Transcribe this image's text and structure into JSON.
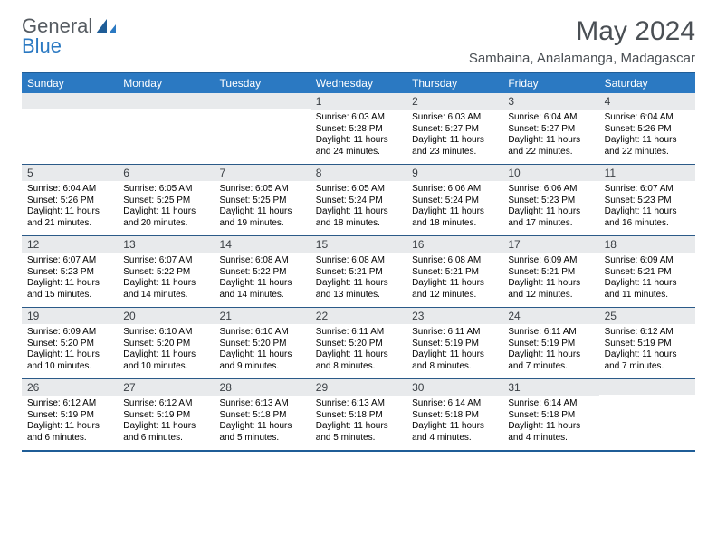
{
  "logo": {
    "text1": "General",
    "text2": "Blue"
  },
  "title": "May 2024",
  "location": "Sambaina, Analamanga, Madagascar",
  "colors": {
    "accent": "#2b79c2",
    "border": "#1f5d97",
    "daynum_bg": "#e8eaec",
    "row_border": "#2b5a88",
    "text_dark": "#4a4f54"
  },
  "typography": {
    "title_fontsize": 30,
    "location_fontsize": 15,
    "header_fontsize": 12,
    "daynum_fontsize": 12,
    "body_fontsize": 10
  },
  "layout": {
    "columns": 7,
    "rows": 5,
    "cell_width": 106.28
  },
  "day_headers": [
    "Sunday",
    "Monday",
    "Tuesday",
    "Wednesday",
    "Thursday",
    "Friday",
    "Saturday"
  ],
  "weeks": [
    [
      {
        "num": "",
        "lines": [
          "",
          "",
          "",
          ""
        ]
      },
      {
        "num": "",
        "lines": [
          "",
          "",
          "",
          ""
        ]
      },
      {
        "num": "",
        "lines": [
          "",
          "",
          "",
          ""
        ]
      },
      {
        "num": "1",
        "lines": [
          "Sunrise: 6:03 AM",
          "Sunset: 5:28 PM",
          "Daylight: 11 hours",
          "and 24 minutes."
        ]
      },
      {
        "num": "2",
        "lines": [
          "Sunrise: 6:03 AM",
          "Sunset: 5:27 PM",
          "Daylight: 11 hours",
          "and 23 minutes."
        ]
      },
      {
        "num": "3",
        "lines": [
          "Sunrise: 6:04 AM",
          "Sunset: 5:27 PM",
          "Daylight: 11 hours",
          "and 22 minutes."
        ]
      },
      {
        "num": "4",
        "lines": [
          "Sunrise: 6:04 AM",
          "Sunset: 5:26 PM",
          "Daylight: 11 hours",
          "and 22 minutes."
        ]
      }
    ],
    [
      {
        "num": "5",
        "lines": [
          "Sunrise: 6:04 AM",
          "Sunset: 5:26 PM",
          "Daylight: 11 hours",
          "and 21 minutes."
        ]
      },
      {
        "num": "6",
        "lines": [
          "Sunrise: 6:05 AM",
          "Sunset: 5:25 PM",
          "Daylight: 11 hours",
          "and 20 minutes."
        ]
      },
      {
        "num": "7",
        "lines": [
          "Sunrise: 6:05 AM",
          "Sunset: 5:25 PM",
          "Daylight: 11 hours",
          "and 19 minutes."
        ]
      },
      {
        "num": "8",
        "lines": [
          "Sunrise: 6:05 AM",
          "Sunset: 5:24 PM",
          "Daylight: 11 hours",
          "and 18 minutes."
        ]
      },
      {
        "num": "9",
        "lines": [
          "Sunrise: 6:06 AM",
          "Sunset: 5:24 PM",
          "Daylight: 11 hours",
          "and 18 minutes."
        ]
      },
      {
        "num": "10",
        "lines": [
          "Sunrise: 6:06 AM",
          "Sunset: 5:23 PM",
          "Daylight: 11 hours",
          "and 17 minutes."
        ]
      },
      {
        "num": "11",
        "lines": [
          "Sunrise: 6:07 AM",
          "Sunset: 5:23 PM",
          "Daylight: 11 hours",
          "and 16 minutes."
        ]
      }
    ],
    [
      {
        "num": "12",
        "lines": [
          "Sunrise: 6:07 AM",
          "Sunset: 5:23 PM",
          "Daylight: 11 hours",
          "and 15 minutes."
        ]
      },
      {
        "num": "13",
        "lines": [
          "Sunrise: 6:07 AM",
          "Sunset: 5:22 PM",
          "Daylight: 11 hours",
          "and 14 minutes."
        ]
      },
      {
        "num": "14",
        "lines": [
          "Sunrise: 6:08 AM",
          "Sunset: 5:22 PM",
          "Daylight: 11 hours",
          "and 14 minutes."
        ]
      },
      {
        "num": "15",
        "lines": [
          "Sunrise: 6:08 AM",
          "Sunset: 5:21 PM",
          "Daylight: 11 hours",
          "and 13 minutes."
        ]
      },
      {
        "num": "16",
        "lines": [
          "Sunrise: 6:08 AM",
          "Sunset: 5:21 PM",
          "Daylight: 11 hours",
          "and 12 minutes."
        ]
      },
      {
        "num": "17",
        "lines": [
          "Sunrise: 6:09 AM",
          "Sunset: 5:21 PM",
          "Daylight: 11 hours",
          "and 12 minutes."
        ]
      },
      {
        "num": "18",
        "lines": [
          "Sunrise: 6:09 AM",
          "Sunset: 5:21 PM",
          "Daylight: 11 hours",
          "and 11 minutes."
        ]
      }
    ],
    [
      {
        "num": "19",
        "lines": [
          "Sunrise: 6:09 AM",
          "Sunset: 5:20 PM",
          "Daylight: 11 hours",
          "and 10 minutes."
        ]
      },
      {
        "num": "20",
        "lines": [
          "Sunrise: 6:10 AM",
          "Sunset: 5:20 PM",
          "Daylight: 11 hours",
          "and 10 minutes."
        ]
      },
      {
        "num": "21",
        "lines": [
          "Sunrise: 6:10 AM",
          "Sunset: 5:20 PM",
          "Daylight: 11 hours",
          "and 9 minutes."
        ]
      },
      {
        "num": "22",
        "lines": [
          "Sunrise: 6:11 AM",
          "Sunset: 5:20 PM",
          "Daylight: 11 hours",
          "and 8 minutes."
        ]
      },
      {
        "num": "23",
        "lines": [
          "Sunrise: 6:11 AM",
          "Sunset: 5:19 PM",
          "Daylight: 11 hours",
          "and 8 minutes."
        ]
      },
      {
        "num": "24",
        "lines": [
          "Sunrise: 6:11 AM",
          "Sunset: 5:19 PM",
          "Daylight: 11 hours",
          "and 7 minutes."
        ]
      },
      {
        "num": "25",
        "lines": [
          "Sunrise: 6:12 AM",
          "Sunset: 5:19 PM",
          "Daylight: 11 hours",
          "and 7 minutes."
        ]
      }
    ],
    [
      {
        "num": "26",
        "lines": [
          "Sunrise: 6:12 AM",
          "Sunset: 5:19 PM",
          "Daylight: 11 hours",
          "and 6 minutes."
        ]
      },
      {
        "num": "27",
        "lines": [
          "Sunrise: 6:12 AM",
          "Sunset: 5:19 PM",
          "Daylight: 11 hours",
          "and 6 minutes."
        ]
      },
      {
        "num": "28",
        "lines": [
          "Sunrise: 6:13 AM",
          "Sunset: 5:18 PM",
          "Daylight: 11 hours",
          "and 5 minutes."
        ]
      },
      {
        "num": "29",
        "lines": [
          "Sunrise: 6:13 AM",
          "Sunset: 5:18 PM",
          "Daylight: 11 hours",
          "and 5 minutes."
        ]
      },
      {
        "num": "30",
        "lines": [
          "Sunrise: 6:14 AM",
          "Sunset: 5:18 PM",
          "Daylight: 11 hours",
          "and 4 minutes."
        ]
      },
      {
        "num": "31",
        "lines": [
          "Sunrise: 6:14 AM",
          "Sunset: 5:18 PM",
          "Daylight: 11 hours",
          "and 4 minutes."
        ]
      },
      {
        "num": "",
        "lines": [
          "",
          "",
          "",
          ""
        ]
      }
    ]
  ]
}
